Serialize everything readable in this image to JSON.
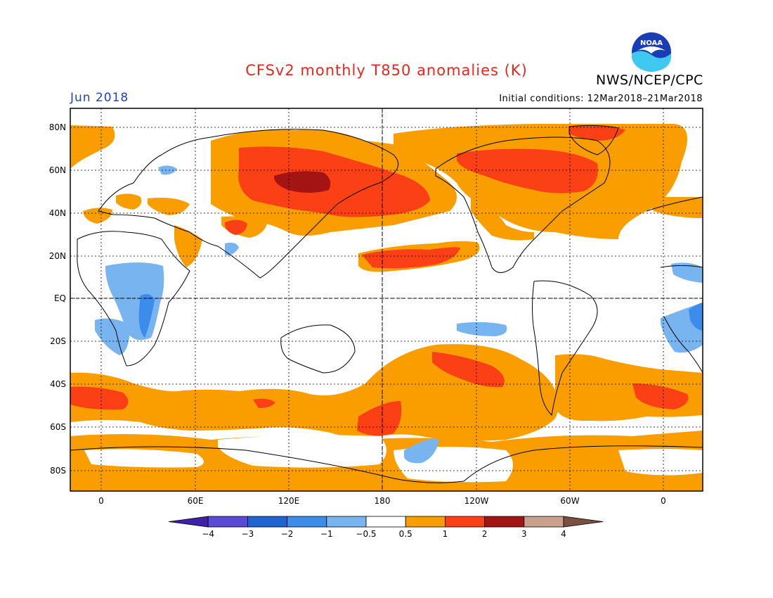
{
  "title": "CFSv2 monthly T850 anomalies (K)",
  "org": "NWS/NCEP/CPC",
  "logo_text": "NOAA",
  "month_label": "Jun 2018",
  "initial_conditions": "Initial conditions: 12Mar2018–21Mar2018",
  "lat_labels": [
    "80N",
    "60N",
    "40N",
    "20N",
    "EQ",
    "20S",
    "40S",
    "60S",
    "80S"
  ],
  "lon_labels": [
    "0",
    "60E",
    "120E",
    "180",
    "120W",
    "60W",
    "0"
  ],
  "colorbar": {
    "colors": [
      "#4020a8",
      "#5a4ad6",
      "#1e64d2",
      "#3c8cec",
      "#78b4f0",
      "#ffffff",
      "#fa9e00",
      "#fa4014",
      "#a51414",
      "#c8a08c",
      "#7a4f3f"
    ],
    "tick_labels": [
      "-4",
      "-3",
      "-2",
      "-1",
      "-0.5",
      "0.5",
      "1",
      "2",
      "3",
      "4"
    ]
  },
  "colors": {
    "title": "#e8281e",
    "month": "#1f3fcf",
    "anomaly_0_5_to_1": "#fa9e00",
    "anomaly_1_to_2": "#fa4014",
    "anomaly_2_to_3": "#a51414",
    "anomaly_minus_1_to_minus_0_5": "#78b4f0",
    "anomaly_minus_2_to_minus_1": "#3c8cec"
  }
}
